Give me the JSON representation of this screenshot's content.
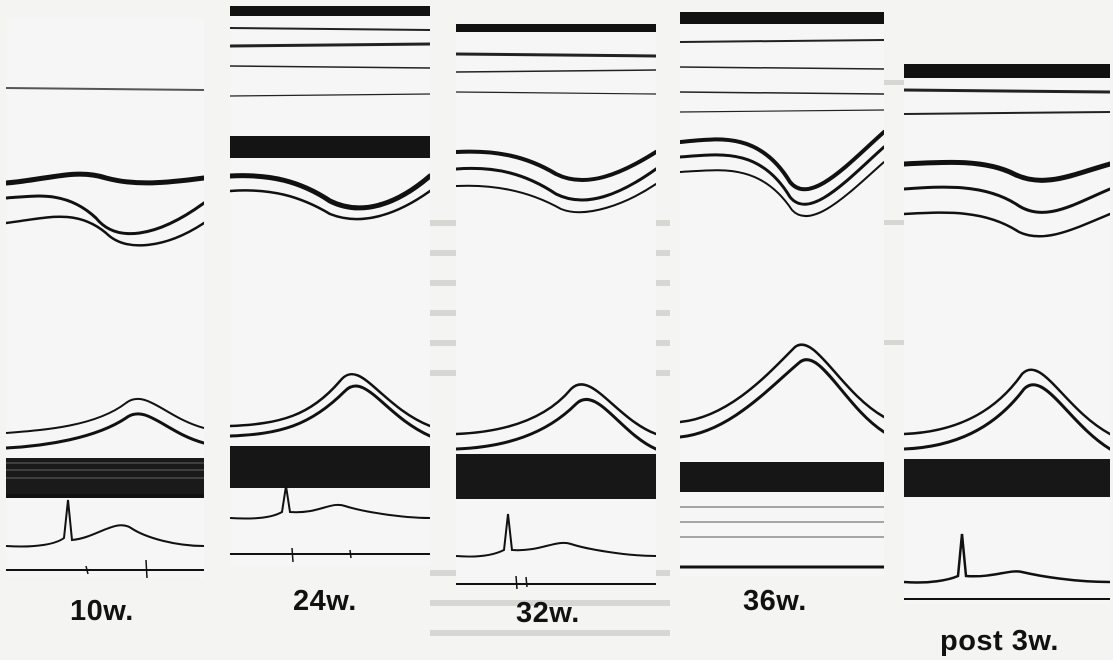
{
  "figure": {
    "panels": [
      {
        "id": "p1",
        "label": "10w."
      },
      {
        "id": "p2",
        "label": "24w."
      },
      {
        "id": "p3",
        "label": "32w."
      },
      {
        "id": "p4",
        "label": "36w."
      },
      {
        "id": "p5",
        "label": "post 3w."
      }
    ],
    "colors": {
      "ink": "#111111",
      "paper": "#f4f4f2",
      "panel": "#ffffff"
    }
  }
}
